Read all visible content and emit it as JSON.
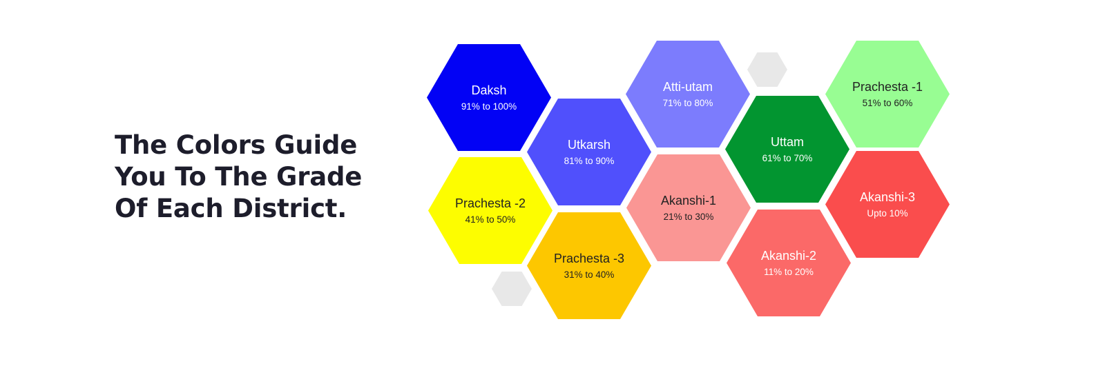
{
  "heading": {
    "line1": "The Colors Guide",
    "line2": "You To The Grade",
    "line3": "Of Each District."
  },
  "grades": [
    {
      "name": "Daksh",
      "range": "91% to 100%",
      "color": "#0202f5",
      "text_color": "#ffffff"
    },
    {
      "name": "Utkarsh",
      "range": "81% to 90%",
      "color": "#5050fc",
      "text_color": "#ffffff"
    },
    {
      "name": "Atti-utam",
      "range": "71% to 80%",
      "color": "#7c7cfd",
      "text_color": "#ffffff"
    },
    {
      "name": "Uttam",
      "range": "61% to 70%",
      "color": "#029530",
      "text_color": "#ffffff"
    },
    {
      "name": "Prachesta -1",
      "range": "51% to 60%",
      "color": "#98fd93",
      "text_color": "#222222"
    },
    {
      "name": "Prachesta -2",
      "range": "41% to 50%",
      "color": "#fdfd00",
      "text_color": "#222222"
    },
    {
      "name": "Prachesta -3",
      "range": "31% to 40%",
      "color": "#fdc700",
      "text_color": "#222222"
    },
    {
      "name": "Akanshi-1",
      "range": "21% to 30%",
      "color": "#fa9694",
      "text_color": "#222222"
    },
    {
      "name": "Akanshi-2",
      "range": "11% to 20%",
      "color": "#fb6968",
      "text_color": "#ffffff"
    },
    {
      "name": "Akanshi-3",
      "range": "Upto 10%",
      "color": "#fa4d4d",
      "text_color": "#ffffff"
    }
  ]
}
